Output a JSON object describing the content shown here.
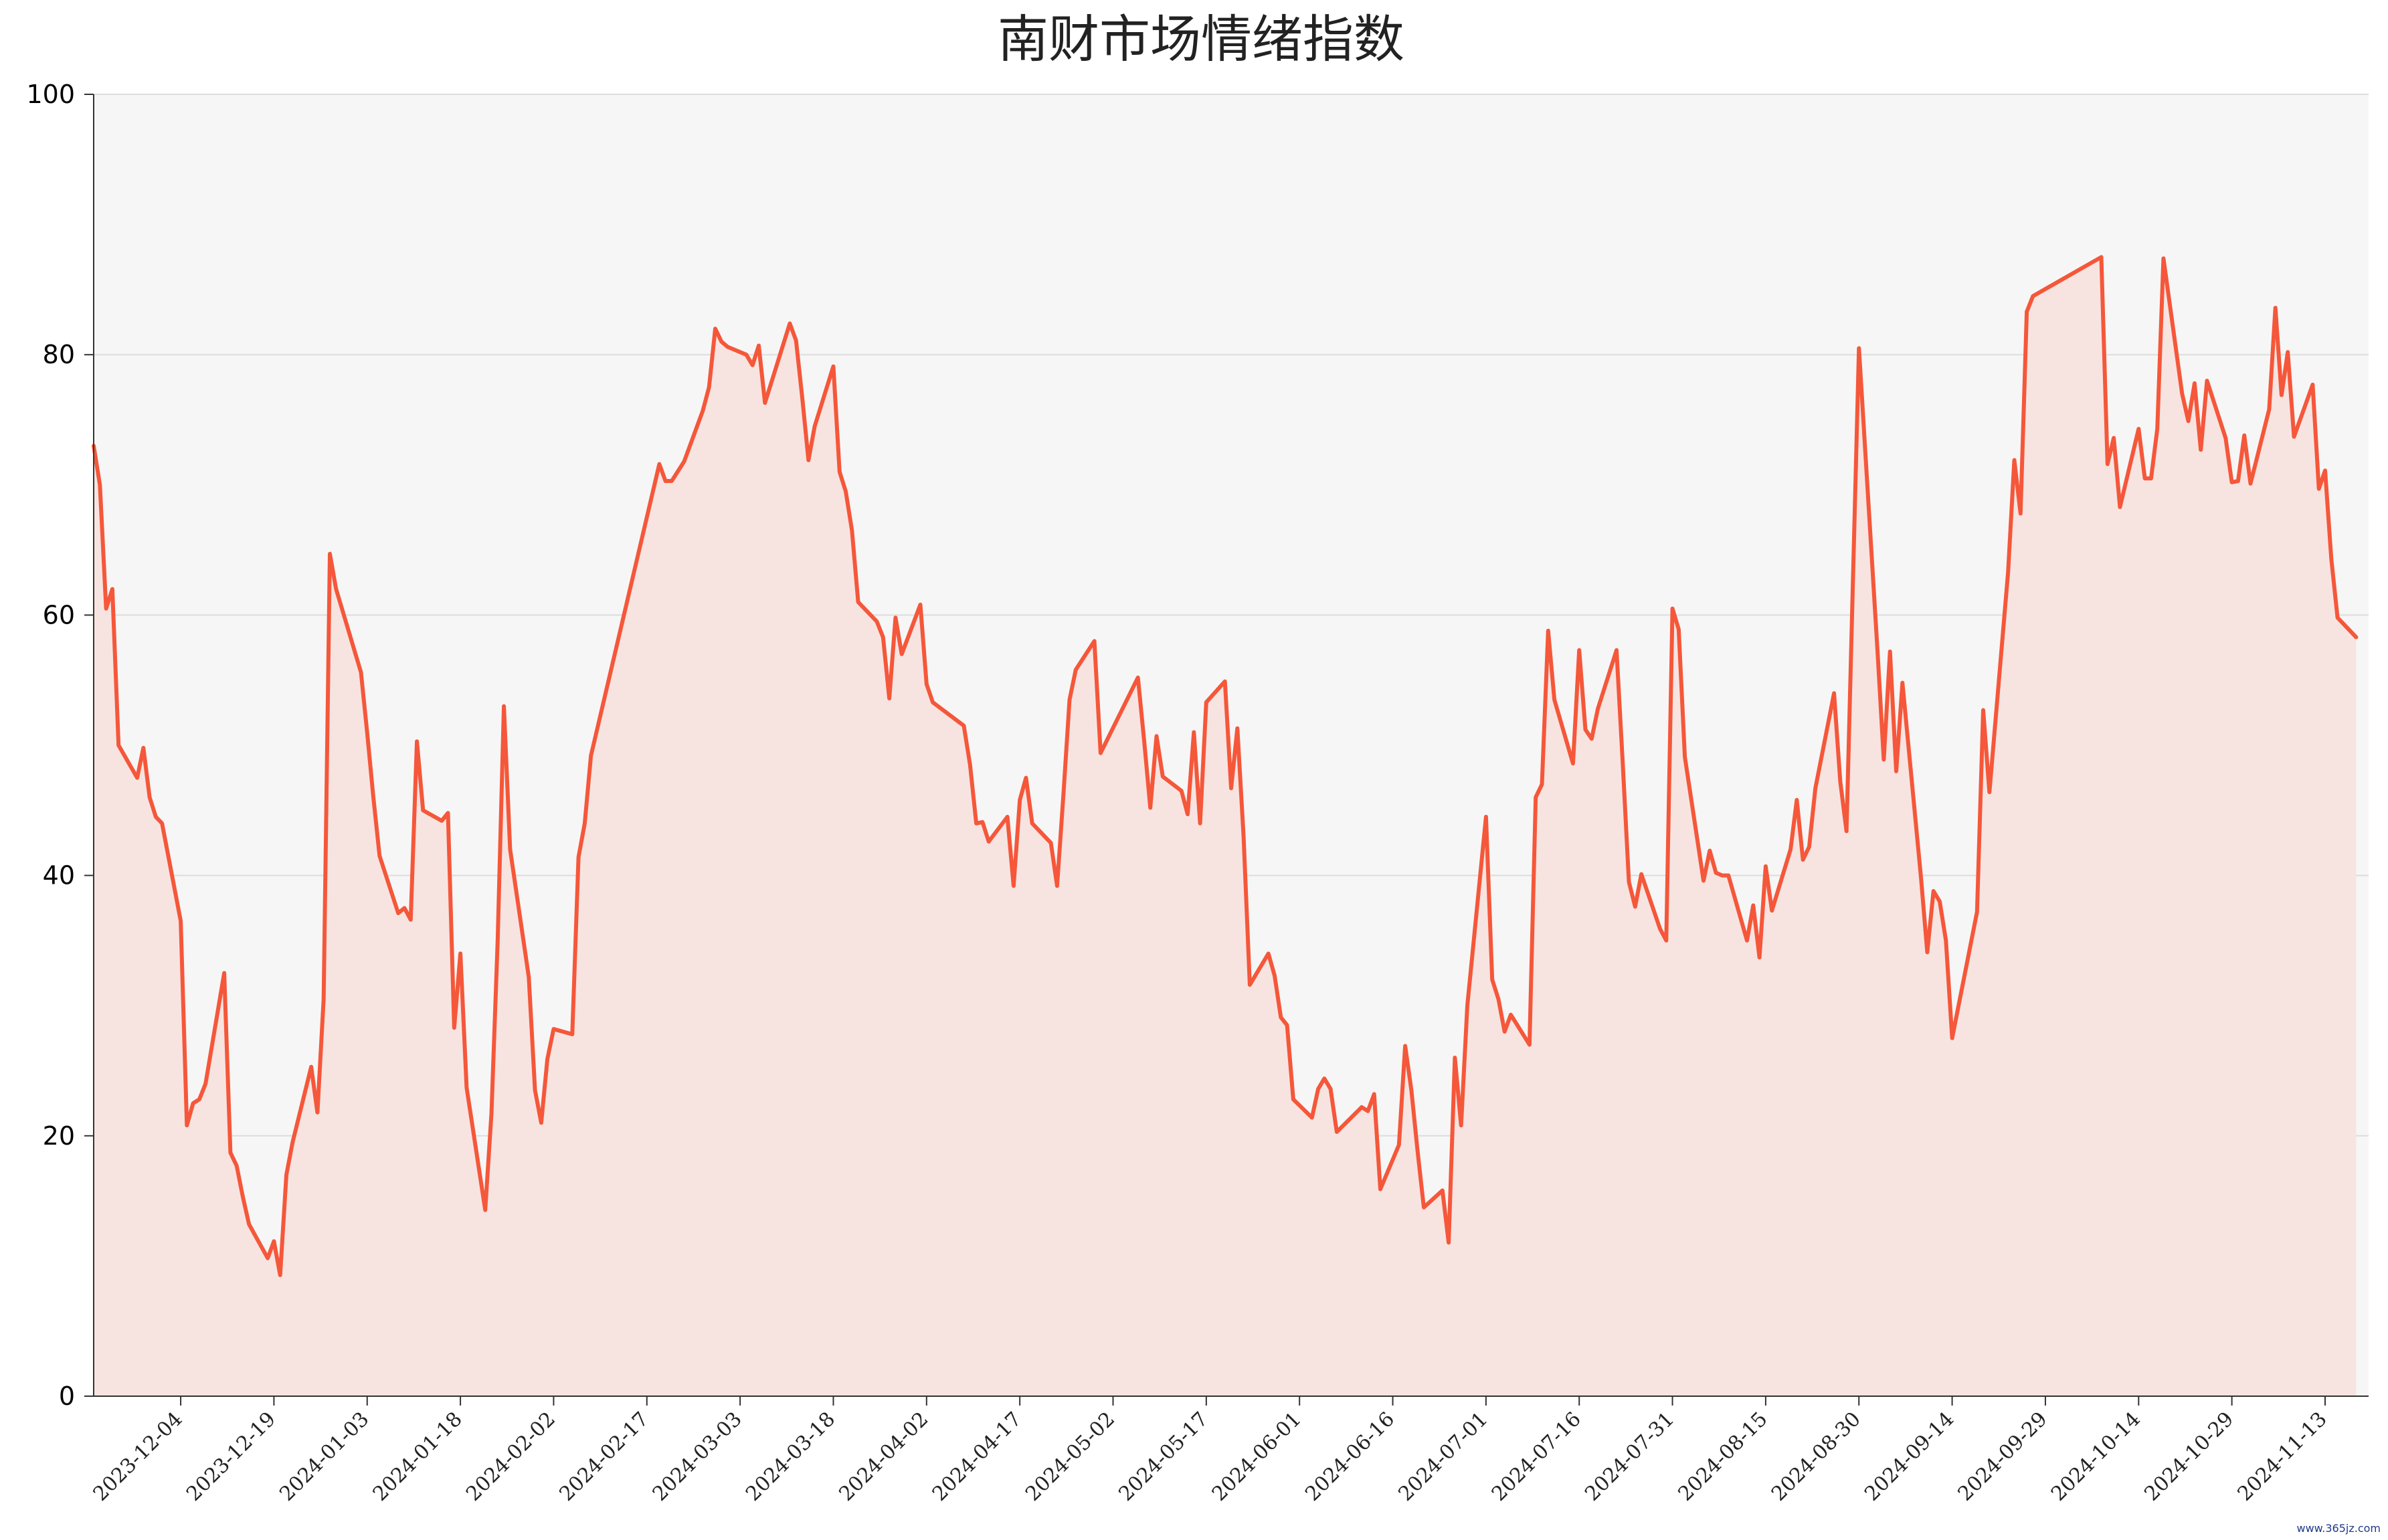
{
  "chart_data": {
    "type": "area",
    "title": "南财市场情绪指数",
    "xlabel": "",
    "ylabel": "",
    "ylim": [
      0,
      100
    ],
    "y_ticks": [
      0,
      20,
      40,
      60,
      80,
      100
    ],
    "xlim": [
      "2023-11-20",
      "2024-11-20"
    ],
    "x_ticks": [
      "2023-12-04",
      "2023-12-19",
      "2024-01-03",
      "2024-01-18",
      "2024-02-02",
      "2024-02-17",
      "2024-03-03",
      "2024-03-18",
      "2024-04-02",
      "2024-04-17",
      "2024-05-02",
      "2024-05-17",
      "2024-06-01",
      "2024-06-16",
      "2024-07-01",
      "2024-07-16",
      "2024-07-31",
      "2024-08-15",
      "2024-08-30",
      "2024-09-14",
      "2024-09-29",
      "2024-10-14",
      "2024-10-29",
      "2024-11-13"
    ],
    "grid": "horizontal",
    "line_color": "#f5573a",
    "fill_color": "#f7e4e1",
    "plot_background": "#f6f6f6",
    "series": [
      {
        "points": [
          [
            "2023-11-20",
            73.0
          ],
          [
            "2023-11-21",
            70.0
          ],
          [
            "2023-11-22",
            60.5
          ],
          [
            "2023-11-23",
            62.0
          ],
          [
            "2023-11-24",
            50.0
          ],
          [
            "2023-11-27",
            47.5
          ],
          [
            "2023-11-28",
            49.8
          ],
          [
            "2023-11-29",
            46.0
          ],
          [
            "2023-11-30",
            44.5
          ],
          [
            "2023-12-01",
            44.0
          ],
          [
            "2023-12-04",
            36.5
          ],
          [
            "2023-12-05",
            20.8
          ],
          [
            "2023-12-06",
            22.5
          ],
          [
            "2023-12-07",
            22.8
          ],
          [
            "2023-12-08",
            24.0
          ],
          [
            "2023-12-11",
            32.5
          ],
          [
            "2023-12-12",
            18.7
          ],
          [
            "2023-12-13",
            17.7
          ],
          [
            "2023-12-14",
            15.3
          ],
          [
            "2023-12-15",
            13.2
          ],
          [
            "2023-12-18",
            10.6
          ],
          [
            "2023-12-19",
            11.9
          ],
          [
            "2023-12-20",
            9.3
          ],
          [
            "2023-12-21",
            17.0
          ],
          [
            "2023-12-22",
            19.5
          ],
          [
            "2023-12-25",
            25.3
          ],
          [
            "2023-12-26",
            21.8
          ],
          [
            "2023-12-27",
            30.5
          ],
          [
            "2023-12-28",
            64.7
          ],
          [
            "2023-12-29",
            62.0
          ],
          [
            "2024-01-02",
            55.6
          ],
          [
            "2024-01-03",
            51.0
          ],
          [
            "2024-01-04",
            46.0
          ],
          [
            "2024-01-05",
            41.5
          ],
          [
            "2024-01-08",
            37.1
          ],
          [
            "2024-01-09",
            37.5
          ],
          [
            "2024-01-10",
            36.6
          ],
          [
            "2024-01-11",
            50.3
          ],
          [
            "2024-01-12",
            45.0
          ],
          [
            "2024-01-15",
            44.2
          ],
          [
            "2024-01-16",
            44.8
          ],
          [
            "2024-01-17",
            28.3
          ],
          [
            "2024-01-18",
            34.0
          ],
          [
            "2024-01-19",
            23.7
          ],
          [
            "2024-01-22",
            14.3
          ],
          [
            "2024-01-23",
            21.7
          ],
          [
            "2024-01-24",
            35.0
          ],
          [
            "2024-01-25",
            53.0
          ],
          [
            "2024-01-26",
            42.0
          ],
          [
            "2024-01-29",
            32.2
          ],
          [
            "2024-01-30",
            23.5
          ],
          [
            "2024-01-31",
            21.0
          ],
          [
            "2024-02-01",
            25.9
          ],
          [
            "2024-02-02",
            28.2
          ],
          [
            "2024-02-05",
            27.8
          ],
          [
            "2024-02-06",
            41.4
          ],
          [
            "2024-02-07",
            44.0
          ],
          [
            "2024-02-08",
            49.2
          ],
          [
            "2024-02-19",
            71.6
          ],
          [
            "2024-02-20",
            70.3
          ],
          [
            "2024-02-21",
            70.3
          ],
          [
            "2024-02-23",
            71.8
          ],
          [
            "2024-02-26",
            75.7
          ],
          [
            "2024-02-27",
            77.5
          ],
          [
            "2024-02-28",
            82.0
          ],
          [
            "2024-02-29",
            81.0
          ],
          [
            "2024-03-01",
            80.6
          ],
          [
            "2024-03-04",
            80.0
          ],
          [
            "2024-03-05",
            79.2
          ],
          [
            "2024-03-06",
            80.7
          ],
          [
            "2024-03-07",
            76.3
          ],
          [
            "2024-03-11",
            82.4
          ],
          [
            "2024-03-12",
            81.1
          ],
          [
            "2024-03-13",
            76.7
          ],
          [
            "2024-03-14",
            71.9
          ],
          [
            "2024-03-15",
            74.5
          ],
          [
            "2024-03-18",
            79.1
          ],
          [
            "2024-03-19",
            71.0
          ],
          [
            "2024-03-20",
            69.5
          ],
          [
            "2024-03-21",
            66.5
          ],
          [
            "2024-03-22",
            61.0
          ],
          [
            "2024-03-25",
            59.5
          ],
          [
            "2024-03-26",
            58.3
          ],
          [
            "2024-03-27",
            53.6
          ],
          [
            "2024-03-28",
            59.8
          ],
          [
            "2024-03-29",
            57.0
          ],
          [
            "2024-04-01",
            60.8
          ],
          [
            "2024-04-02",
            54.7
          ],
          [
            "2024-04-03",
            53.3
          ],
          [
            "2024-04-08",
            51.5
          ],
          [
            "2024-04-09",
            48.5
          ],
          [
            "2024-04-10",
            44.0
          ],
          [
            "2024-04-11",
            44.1
          ],
          [
            "2024-04-12",
            42.6
          ],
          [
            "2024-04-15",
            44.5
          ],
          [
            "2024-04-16",
            39.2
          ],
          [
            "2024-04-17",
            45.8
          ],
          [
            "2024-04-18",
            47.5
          ],
          [
            "2024-04-19",
            44.0
          ],
          [
            "2024-04-22",
            42.5
          ],
          [
            "2024-04-23",
            39.2
          ],
          [
            "2024-04-24",
            46.1
          ],
          [
            "2024-04-25",
            53.5
          ],
          [
            "2024-04-26",
            55.8
          ],
          [
            "2024-04-29",
            58.0
          ],
          [
            "2024-04-30",
            49.4
          ],
          [
            "2024-05-06",
            55.2
          ],
          [
            "2024-05-07",
            50.4
          ],
          [
            "2024-05-08",
            45.2
          ],
          [
            "2024-05-09",
            50.7
          ],
          [
            "2024-05-10",
            47.6
          ],
          [
            "2024-05-13",
            46.5
          ],
          [
            "2024-05-14",
            44.7
          ],
          [
            "2024-05-15",
            51.0
          ],
          [
            "2024-05-16",
            44.0
          ],
          [
            "2024-05-17",
            53.3
          ],
          [
            "2024-05-20",
            54.9
          ],
          [
            "2024-05-21",
            46.7
          ],
          [
            "2024-05-22",
            51.3
          ],
          [
            "2024-05-23",
            43.0
          ],
          [
            "2024-05-24",
            31.6
          ],
          [
            "2024-05-27",
            34.0
          ],
          [
            "2024-05-28",
            32.3
          ],
          [
            "2024-05-29",
            29.1
          ],
          [
            "2024-05-30",
            28.5
          ],
          [
            "2024-05-31",
            22.8
          ],
          [
            "2024-06-03",
            21.4
          ],
          [
            "2024-06-04",
            23.6
          ],
          [
            "2024-06-05",
            24.4
          ],
          [
            "2024-06-06",
            23.6
          ],
          [
            "2024-06-07",
            20.3
          ],
          [
            "2024-06-11",
            22.2
          ],
          [
            "2024-06-12",
            21.9
          ],
          [
            "2024-06-13",
            23.2
          ],
          [
            "2024-06-14",
            15.9
          ],
          [
            "2024-06-17",
            19.3
          ],
          [
            "2024-06-18",
            26.9
          ],
          [
            "2024-06-19",
            23.5
          ],
          [
            "2024-06-20",
            18.8
          ],
          [
            "2024-06-21",
            14.5
          ],
          [
            "2024-06-24",
            15.8
          ],
          [
            "2024-06-25",
            11.8
          ],
          [
            "2024-06-26",
            26.0
          ],
          [
            "2024-06-27",
            20.8
          ],
          [
            "2024-06-28",
            30.0
          ],
          [
            "2024-07-01",
            44.5
          ],
          [
            "2024-07-02",
            32.0
          ],
          [
            "2024-07-03",
            30.5
          ],
          [
            "2024-07-04",
            28.0
          ],
          [
            "2024-07-05",
            29.3
          ],
          [
            "2024-07-08",
            27.0
          ],
          [
            "2024-07-09",
            46.0
          ],
          [
            "2024-07-10",
            47.0
          ],
          [
            "2024-07-11",
            58.8
          ],
          [
            "2024-07-12",
            53.5
          ],
          [
            "2024-07-15",
            48.6
          ],
          [
            "2024-07-16",
            57.3
          ],
          [
            "2024-07-17",
            51.2
          ],
          [
            "2024-07-18",
            50.5
          ],
          [
            "2024-07-19",
            52.8
          ],
          [
            "2024-07-22",
            57.3
          ],
          [
            "2024-07-23",
            48.7
          ],
          [
            "2024-07-24",
            39.5
          ],
          [
            "2024-07-25",
            37.6
          ],
          [
            "2024-07-26",
            40.1
          ],
          [
            "2024-07-29",
            35.9
          ],
          [
            "2024-07-30",
            35.0
          ],
          [
            "2024-07-31",
            60.5
          ],
          [
            "2024-08-01",
            58.9
          ],
          [
            "2024-08-02",
            49.1
          ],
          [
            "2024-08-05",
            39.6
          ],
          [
            "2024-08-06",
            41.9
          ],
          [
            "2024-08-07",
            40.2
          ],
          [
            "2024-08-08",
            40.0
          ],
          [
            "2024-08-09",
            40.0
          ],
          [
            "2024-08-12",
            35.0
          ],
          [
            "2024-08-13",
            37.7
          ],
          [
            "2024-08-14",
            33.7
          ],
          [
            "2024-08-15",
            40.7
          ],
          [
            "2024-08-16",
            37.3
          ],
          [
            "2024-08-19",
            42.0
          ],
          [
            "2024-08-20",
            45.8
          ],
          [
            "2024-08-21",
            41.2
          ],
          [
            "2024-08-22",
            42.2
          ],
          [
            "2024-08-23",
            46.7
          ],
          [
            "2024-08-26",
            54.0
          ],
          [
            "2024-08-27",
            47.2
          ],
          [
            "2024-08-28",
            43.4
          ],
          [
            "2024-08-29",
            62.0
          ],
          [
            "2024-08-30",
            80.5
          ],
          [
            "2024-09-02",
            57.2
          ],
          [
            "2024-09-03",
            48.9
          ],
          [
            "2024-09-04",
            57.2
          ],
          [
            "2024-09-05",
            48.0
          ],
          [
            "2024-09-06",
            54.8
          ],
          [
            "2024-09-09",
            39.8
          ],
          [
            "2024-09-10",
            34.1
          ],
          [
            "2024-09-11",
            38.8
          ],
          [
            "2024-09-12",
            38.0
          ],
          [
            "2024-09-13",
            35.0
          ],
          [
            "2024-09-14",
            27.5
          ],
          [
            "2024-09-18",
            37.2
          ],
          [
            "2024-09-19",
            52.7
          ],
          [
            "2024-09-20",
            46.4
          ],
          [
            "2024-09-23",
            63.3
          ],
          [
            "2024-09-24",
            71.9
          ],
          [
            "2024-09-25",
            67.8
          ],
          [
            "2024-09-26",
            83.3
          ],
          [
            "2024-09-27",
            84.5
          ],
          [
            "2024-10-08",
            87.5
          ],
          [
            "2024-10-09",
            71.6
          ],
          [
            "2024-10-10",
            73.6
          ],
          [
            "2024-10-11",
            68.3
          ],
          [
            "2024-10-14",
            74.3
          ],
          [
            "2024-10-15",
            70.5
          ],
          [
            "2024-10-16",
            70.5
          ],
          [
            "2024-10-17",
            74.3
          ],
          [
            "2024-10-18",
            87.4
          ],
          [
            "2024-10-21",
            77.0
          ],
          [
            "2024-10-22",
            74.9
          ],
          [
            "2024-10-23",
            77.8
          ],
          [
            "2024-10-24",
            72.7
          ],
          [
            "2024-10-25",
            78.0
          ],
          [
            "2024-10-28",
            73.6
          ],
          [
            "2024-10-29",
            70.2
          ],
          [
            "2024-10-30",
            70.3
          ],
          [
            "2024-10-31",
            73.8
          ],
          [
            "2024-11-01",
            70.1
          ],
          [
            "2024-11-04",
            75.8
          ],
          [
            "2024-11-05",
            83.6
          ],
          [
            "2024-11-06",
            76.9
          ],
          [
            "2024-11-07",
            80.2
          ],
          [
            "2024-11-08",
            73.7
          ],
          [
            "2024-11-11",
            77.7
          ],
          [
            "2024-11-12",
            69.7
          ],
          [
            "2024-11-13",
            71.1
          ],
          [
            "2024-11-14",
            64.3
          ],
          [
            "2024-11-15",
            59.8
          ],
          [
            "2024-11-18",
            58.3
          ]
        ]
      }
    ]
  },
  "watermark": "www.365jz.com"
}
